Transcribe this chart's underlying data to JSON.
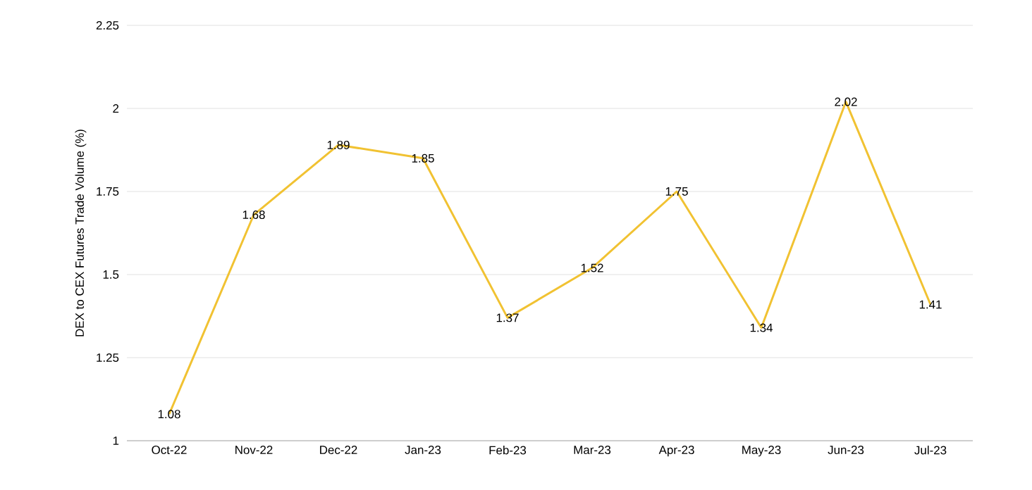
{
  "chart_data": {
    "type": "line",
    "ylabel": "DEX to CEX Futures Trade Volume (%)",
    "categories": [
      "Oct-22",
      "Nov-22",
      "Dec-22",
      "Jan-23",
      "Feb-23",
      "Mar-23",
      "Apr-23",
      "May-23",
      "Jun-23",
      "Jul-23"
    ],
    "values": [
      1.08,
      1.68,
      1.89,
      1.85,
      1.37,
      1.52,
      1.75,
      1.34,
      2.02,
      1.41
    ],
    "color": "#f1c232",
    "ylim": [
      1,
      2.25
    ],
    "yticks": [
      1,
      1.25,
      1.5,
      1.75,
      2,
      2.25
    ],
    "grid": "y",
    "data_labels": true,
    "line_style": "solid"
  }
}
